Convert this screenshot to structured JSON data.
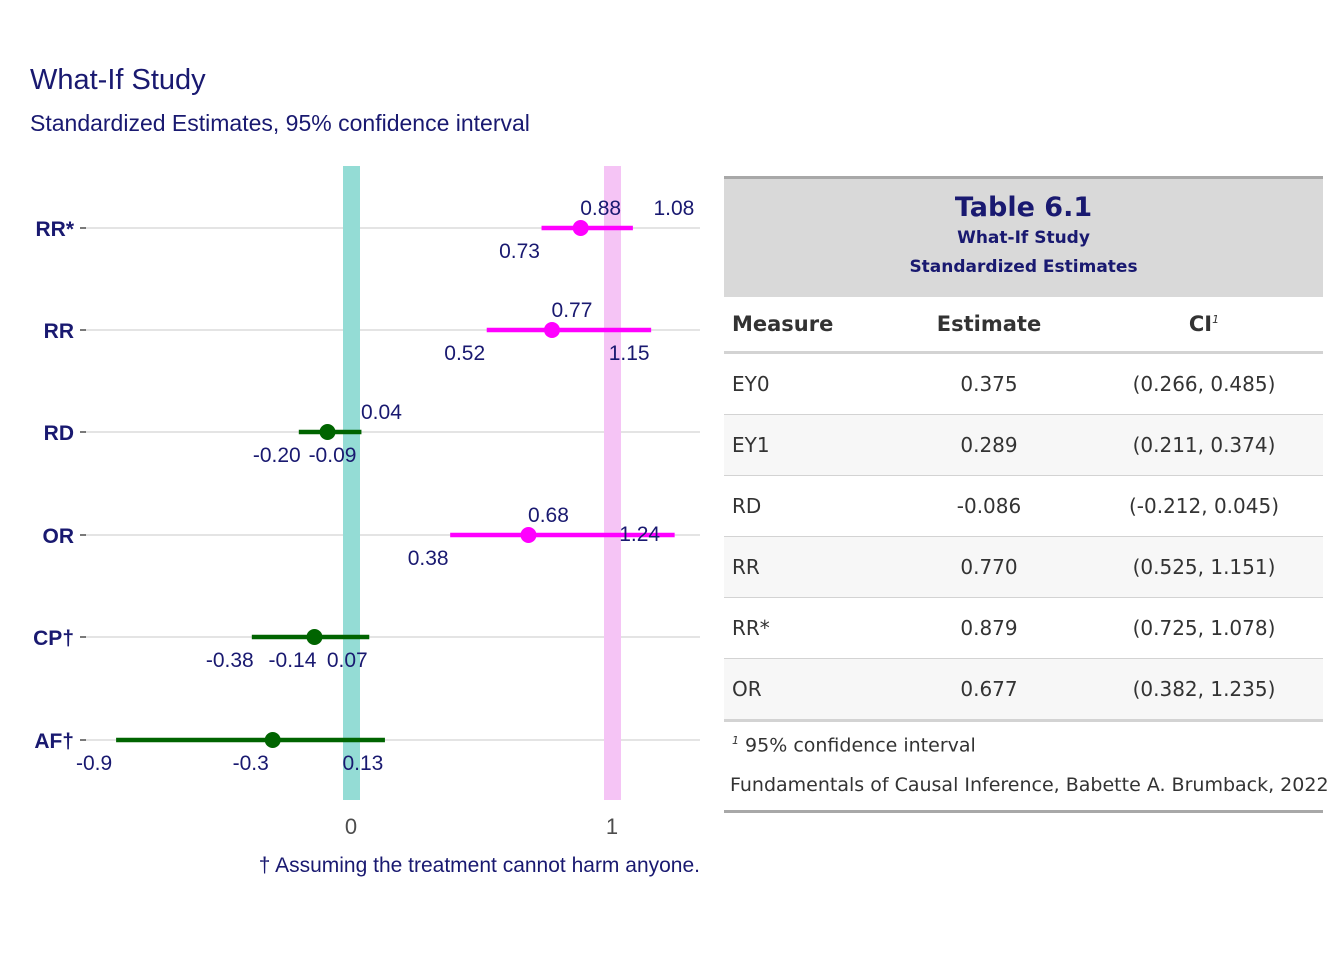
{
  "title": "What-If Study",
  "subtitle": "Standardized Estimates, 95% confidence interval",
  "chart_data": {
    "type": "forest",
    "categories": [
      "RR*",
      "RR",
      "RD",
      "OR",
      "CP†",
      "AF†"
    ],
    "points": [
      {
        "label": "RR*",
        "estimate": 0.88,
        "lower": 0.73,
        "upper": 1.08,
        "est_label": "0.88",
        "lower_label": "0.73",
        "upper_label": "1.08",
        "color": "#ff00ff"
      },
      {
        "label": "RR",
        "estimate": 0.77,
        "lower": 0.52,
        "upper": 1.15,
        "est_label": "0.77",
        "lower_label": "0.52",
        "upper_label": "1.15",
        "color": "#ff00ff"
      },
      {
        "label": "RD",
        "estimate": -0.09,
        "lower": -0.2,
        "upper": 0.04,
        "est_label": "-0.09",
        "lower_label": "-0.20",
        "upper_label": "0.04",
        "color": "#006400"
      },
      {
        "label": "OR",
        "estimate": 0.68,
        "lower": 0.38,
        "upper": 1.24,
        "est_label": "0.68",
        "lower_label": "0.38",
        "upper_label": "1.24",
        "color": "#ff00ff"
      },
      {
        "label": "CP†",
        "estimate": -0.14,
        "lower": -0.38,
        "upper": 0.07,
        "est_label": "-0.14",
        "lower_label": "-0.38",
        "upper_label": "0.07",
        "color": "#006400"
      },
      {
        "label": "AF†",
        "estimate": -0.3,
        "lower": -0.9,
        "upper": 0.13,
        "est_label": "-0.3",
        "lower_label": "-0.9",
        "upper_label": "0.13",
        "color": "#006400"
      }
    ],
    "reference_lines": [
      {
        "x": 0,
        "color": "#94dcd5"
      },
      {
        "x": 1,
        "color": "#f5c4f5"
      }
    ],
    "x_ticks": [
      0,
      1
    ],
    "xlim": [
      -0.9,
      1.24
    ],
    "caption": "† Assuming the treatment cannot harm anyone.",
    "grid": "horizontal"
  },
  "table": {
    "title": "Table 6.1",
    "subtitle_lines": [
      "What-If Study",
      "Standardized Estimates"
    ],
    "columns": [
      "Measure",
      "Estimate",
      "CI"
    ],
    "ci_footnote_mark": "1",
    "rows": [
      {
        "measure": "EY0",
        "estimate": "0.375",
        "ci": "(0.266, 0.485)"
      },
      {
        "measure": "EY1",
        "estimate": "0.289",
        "ci": "(0.211, 0.374)"
      },
      {
        "measure": "RD",
        "estimate": "-0.086",
        "ci": "(-0.212, 0.045)"
      },
      {
        "measure": "RR",
        "estimate": "0.770",
        "ci": "(0.525, 1.151)"
      },
      {
        "measure": "RR*",
        "estimate": "0.879",
        "ci": "(0.725, 1.078)"
      },
      {
        "measure": "OR",
        "estimate": "0.677",
        "ci": "(0.382, 1.235)"
      }
    ],
    "footnote": "95% confidence interval",
    "source": "Fundamentals of Causal Inference, Babette A. Brumback, 2022"
  },
  "colors": {
    "title": "#191970",
    "harm_free": "#006400",
    "ratio": "#ff00ff"
  }
}
